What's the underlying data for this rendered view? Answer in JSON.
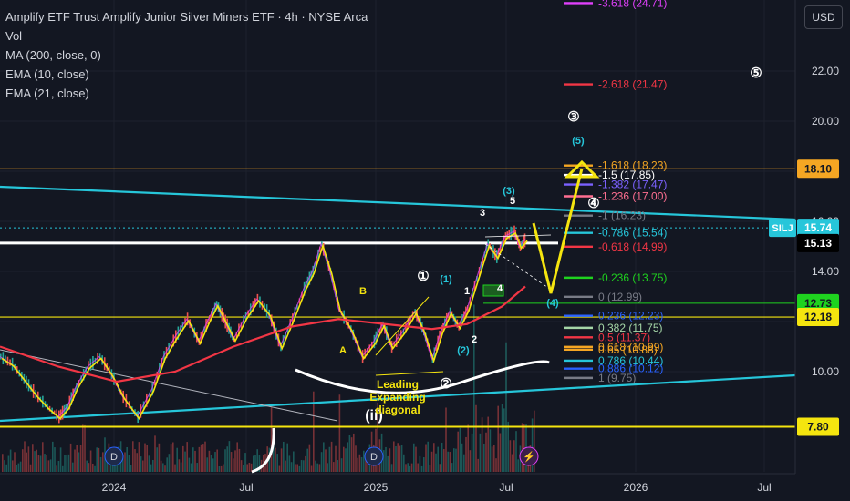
{
  "header": {
    "title": "Amplify ETF Trust Amplify Junior Silver Miners ETF · 4h · NYSE Arca",
    "indicators": [
      "Vol",
      "MA (200, close, 0)",
      "EMA (10, close)",
      "EMA (21, close)"
    ],
    "currency_button": "USD"
  },
  "chart_data": {
    "type": "line",
    "symbol": "SILJ",
    "x_ticks": [
      "2024",
      "Jul",
      "2025",
      "Jul",
      "2026",
      "Jul"
    ],
    "y_ticks": [
      10.0,
      12.0,
      14.0,
      16.0,
      18.0,
      20.0,
      22.0
    ],
    "y_tick_labels": [
      "10.00",
      "12.00",
      "14.00",
      "16.00",
      "18.00",
      "20.00",
      "22.00"
    ],
    "ylim": [
      7.2,
      25.0
    ],
    "price_tags": [
      {
        "label": "SILJ",
        "value": 15.74,
        "text": "15.74",
        "color": "#26c6da"
      },
      {
        "value": 15.13,
        "text": "15.13",
        "color": "#000000"
      },
      {
        "value": 18.1,
        "text": "18.10",
        "color": "#f5a623"
      },
      {
        "value": 12.73,
        "text": "12.73",
        "color": "#1fd31f"
      },
      {
        "value": 12.18,
        "text": "12.18",
        "color": "#f5e50f"
      },
      {
        "value": 7.8,
        "text": "7.80",
        "color": "#f5e50f"
      }
    ],
    "fib_upper": [
      {
        "label": "-3.618 (24.71)",
        "value": 24.71,
        "color": "#e040fb"
      },
      {
        "label": "-2.618 (21.47)",
        "value": 21.47,
        "color": "#f23645"
      },
      {
        "label": "-1.618 (18.23)",
        "value": 18.23,
        "color": "#f5a623"
      },
      {
        "label": "-1.5 (17.85)",
        "value": 17.85,
        "color": "#ffffff"
      },
      {
        "label": "-1.382 (17.47)",
        "value": 17.47,
        "color": "#7b61ff"
      },
      {
        "label": "-1.236 (17.00)",
        "value": 17.0,
        "color": "#ff6f91"
      },
      {
        "label": "-1 (16.23)",
        "value": 16.23,
        "color": "#787b86"
      },
      {
        "label": "-0.786 (15.54)",
        "value": 15.54,
        "color": "#26c6da"
      },
      {
        "label": "-0.618 (14.99)",
        "value": 14.99,
        "color": "#f23645"
      },
      {
        "label": "-0.236 (13.75)",
        "value": 13.75,
        "color": "#1fd31f"
      },
      {
        "label": "0 (12.99)",
        "value": 12.99,
        "color": "#787b86"
      }
    ],
    "fib_lower": [
      {
        "label": "0.236 (12.23)",
        "value": 12.23,
        "color": "#2962ff"
      },
      {
        "label": "0.382 (11.75)",
        "value": 11.75,
        "color": "#a5d6a7"
      },
      {
        "label": "0.5 (11.37)",
        "value": 11.37,
        "color": "#f23645"
      },
      {
        "label": "0.618 (10.99)",
        "value": 10.99,
        "color": "#f5a623"
      },
      {
        "label": "0.65 (10.88)",
        "value": 10.88,
        "color": "#f5a623"
      },
      {
        "label": "0.786 (10.44)",
        "value": 10.44,
        "color": "#26c6da"
      },
      {
        "label": "0.886 (10.12)",
        "value": 10.12,
        "color": "#2962ff"
      },
      {
        "label": "1 (9.75)",
        "value": 9.75,
        "color": "#787b86"
      }
    ],
    "price_series": [
      {
        "t": 0.0,
        "v": 10.6
      },
      {
        "t": 0.02,
        "v": 10.3
      },
      {
        "t": 0.04,
        "v": 9.7
      },
      {
        "t": 0.06,
        "v": 9.1
      },
      {
        "t": 0.08,
        "v": 8.6
      },
      {
        "t": 0.1,
        "v": 8.2
      },
      {
        "t": 0.115,
        "v": 8.6
      },
      {
        "t": 0.13,
        "v": 9.4
      },
      {
        "t": 0.15,
        "v": 10.2
      },
      {
        "t": 0.17,
        "v": 10.6
      },
      {
        "t": 0.19,
        "v": 9.9
      },
      {
        "t": 0.21,
        "v": 9.0
      },
      {
        "t": 0.235,
        "v": 8.2
      },
      {
        "t": 0.26,
        "v": 9.3
      },
      {
        "t": 0.28,
        "v": 10.6
      },
      {
        "t": 0.3,
        "v": 11.4
      },
      {
        "t": 0.32,
        "v": 12.1
      },
      {
        "t": 0.34,
        "v": 11.2
      },
      {
        "t": 0.355,
        "v": 12.0
      },
      {
        "t": 0.37,
        "v": 12.7
      },
      {
        "t": 0.385,
        "v": 12.0
      },
      {
        "t": 0.4,
        "v": 11.3
      },
      {
        "t": 0.42,
        "v": 12.2
      },
      {
        "t": 0.44,
        "v": 12.9
      },
      {
        "t": 0.46,
        "v": 12.3
      },
      {
        "t": 0.48,
        "v": 11.0
      },
      {
        "t": 0.5,
        "v": 12.1
      },
      {
        "t": 0.52,
        "v": 13.3
      },
      {
        "t": 0.535,
        "v": 14.0
      },
      {
        "t": 0.55,
        "v": 15.1
      },
      {
        "t": 0.565,
        "v": 14.0
      },
      {
        "t": 0.58,
        "v": 12.5
      },
      {
        "t": 0.6,
        "v": 11.7
      },
      {
        "t": 0.62,
        "v": 10.6
      },
      {
        "t": 0.64,
        "v": 11.2
      },
      {
        "t": 0.655,
        "v": 11.9
      },
      {
        "t": 0.67,
        "v": 11.0
      },
      {
        "t": 0.69,
        "v": 11.6
      },
      {
        "t": 0.71,
        "v": 12.4
      },
      {
        "t": 0.725,
        "v": 11.6
      },
      {
        "t": 0.74,
        "v": 10.5
      },
      {
        "t": 0.755,
        "v": 11.6
      },
      {
        "t": 0.77,
        "v": 12.4
      },
      {
        "t": 0.785,
        "v": 11.8
      },
      {
        "t": 0.8,
        "v": 12.5
      },
      {
        "t": 0.82,
        "v": 14.0
      },
      {
        "t": 0.835,
        "v": 15.1
      },
      {
        "t": 0.85,
        "v": 14.6
      },
      {
        "t": 0.865,
        "v": 15.4
      },
      {
        "t": 0.88,
        "v": 15.6
      },
      {
        "t": 0.89,
        "v": 15.0
      },
      {
        "t": 0.9,
        "v": 15.3
      }
    ],
    "ma200_series": [
      {
        "t": 0.0,
        "v": 11.0
      },
      {
        "t": 0.1,
        "v": 10.2
      },
      {
        "t": 0.2,
        "v": 9.6
      },
      {
        "t": 0.3,
        "v": 10.0
      },
      {
        "t": 0.4,
        "v": 11.0
      },
      {
        "t": 0.5,
        "v": 11.8
      },
      {
        "t": 0.58,
        "v": 12.1
      },
      {
        "t": 0.66,
        "v": 11.9
      },
      {
        "t": 0.74,
        "v": 11.7
      },
      {
        "t": 0.8,
        "v": 11.9
      },
      {
        "t": 0.86,
        "v": 12.6
      },
      {
        "t": 0.9,
        "v": 13.4
      }
    ],
    "wave_labels": [
      {
        "text": "A",
        "color": "#f5e50f"
      },
      {
        "text": "B",
        "color": "#f5e50f"
      },
      {
        "text": "①",
        "color": "#ffffff"
      },
      {
        "text": "②",
        "color": "#ffffff"
      },
      {
        "text": "③",
        "color": "#ffffff"
      },
      {
        "text": "④",
        "color": "#ffffff"
      },
      {
        "text": "⑤",
        "color": "#ffffff"
      },
      {
        "text": "(1)",
        "color": "#26c6da"
      },
      {
        "text": "(2)",
        "color": "#26c6da"
      },
      {
        "text": "(3)",
        "color": "#26c6da"
      },
      {
        "text": "(4)",
        "color": "#26c6da"
      },
      {
        "text": "(5)",
        "color": "#26c6da"
      },
      {
        "text": "1",
        "color": "#ffffff"
      },
      {
        "text": "2",
        "color": "#ffffff"
      },
      {
        "text": "3",
        "color": "#ffffff"
      },
      {
        "text": "4",
        "color": "#ffffff"
      },
      {
        "text": "5",
        "color": "#ffffff"
      },
      {
        "text": "(ii)",
        "color": "#ffffff"
      }
    ],
    "annotation": {
      "lines": [
        "Leading",
        "Expanding",
        "diagonal"
      ],
      "color": "#f5e50f"
    },
    "event_badges": [
      "D",
      "D"
    ]
  }
}
